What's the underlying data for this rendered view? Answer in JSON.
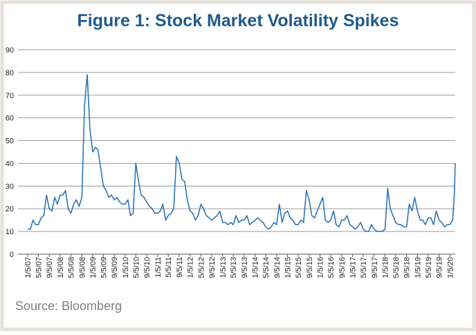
{
  "chart_data": {
    "type": "line",
    "title": "Figure 1: Stock Market Volatility Spikes",
    "source": "Source: Bloomberg",
    "color": "#2e75b6",
    "grid": true,
    "x": [
      "1/5/07",
      "2/5/07",
      "3/5/07",
      "4/5/07",
      "5/5/07",
      "6/5/07",
      "7/5/07",
      "8/5/07",
      "9/5/07",
      "10/5/07",
      "11/5/07",
      "12/5/07",
      "1/5/08",
      "2/5/08",
      "3/5/08",
      "4/5/08",
      "5/5/08",
      "6/5/08",
      "7/5/08",
      "8/5/08",
      "9/5/08",
      "10/5/08",
      "11/5/08",
      "12/5/08",
      "1/5/09",
      "2/5/09",
      "3/5/09",
      "4/5/09",
      "5/5/09",
      "6/5/09",
      "7/5/09",
      "8/5/09",
      "9/5/09",
      "10/5/09",
      "11/5/09",
      "12/5/09",
      "1/5/10",
      "2/5/10",
      "3/5/10",
      "4/5/10",
      "5/5/10",
      "6/5/10",
      "7/5/10",
      "8/5/10",
      "9/5/10",
      "10/5/10",
      "11/5/10",
      "12/5/10",
      "1/5/11",
      "2/5/11",
      "3/5/11",
      "4/5/11",
      "5/5/11",
      "6/5/11",
      "7/5/11",
      "8/5/11",
      "9/5/11",
      "10/5/11",
      "11/5/11",
      "12/5/11",
      "1/5/12",
      "2/5/12",
      "3/5/12",
      "4/5/12",
      "5/5/12",
      "6/5/12",
      "7/5/12",
      "8/5/12",
      "9/5/12",
      "10/5/12",
      "11/5/12",
      "12/5/12",
      "1/5/13",
      "2/5/13",
      "3/5/13",
      "4/5/13",
      "5/5/13",
      "6/5/13",
      "7/5/13",
      "8/5/13",
      "9/5/13",
      "10/5/13",
      "11/5/13",
      "12/5/13",
      "1/5/14",
      "2/5/14",
      "3/5/14",
      "4/5/14",
      "5/5/14",
      "6/5/14",
      "7/5/14",
      "8/5/14",
      "9/5/14",
      "10/5/14",
      "11/5/14",
      "12/5/14",
      "1/5/15",
      "2/5/15",
      "3/5/15",
      "4/5/15",
      "5/5/15",
      "6/5/15",
      "7/5/15",
      "8/5/15",
      "9/5/15",
      "10/5/15",
      "11/5/15",
      "12/5/15",
      "1/5/16",
      "2/5/16",
      "3/5/16",
      "4/5/16",
      "5/5/16",
      "6/5/16",
      "7/5/16",
      "8/5/16",
      "9/5/16",
      "10/5/16",
      "11/5/16",
      "12/5/16",
      "1/5/17",
      "2/5/17",
      "3/5/17",
      "4/5/17",
      "5/5/17",
      "6/5/17",
      "7/5/17",
      "8/5/17",
      "9/5/17",
      "10/5/17",
      "11/5/17",
      "12/5/17",
      "1/5/18",
      "2/5/18",
      "3/5/18",
      "4/5/18",
      "5/5/18",
      "6/5/18",
      "7/5/18",
      "8/5/18",
      "9/5/18",
      "10/5/18",
      "11/5/18",
      "12/5/18",
      "1/5/19",
      "2/5/19",
      "3/5/19",
      "4/5/19",
      "5/5/19",
      "6/5/19",
      "7/5/19",
      "8/5/19",
      "9/5/19",
      "10/5/19",
      "11/5/19",
      "12/5/19",
      "1/5/20",
      "2/5/20",
      "2/25/20",
      "3/5/20"
    ],
    "values": [
      11,
      11,
      15,
      13,
      13,
      16,
      17,
      26,
      20,
      19,
      25,
      22,
      26,
      26,
      28,
      20,
      18,
      22,
      24,
      21,
      25,
      65,
      79,
      55,
      45,
      47,
      46,
      38,
      30,
      28,
      25,
      26,
      24,
      25,
      23,
      22,
      22,
      24,
      17,
      18,
      40,
      32,
      26,
      25,
      23,
      21,
      20,
      18,
      18,
      19,
      22,
      15,
      17,
      18,
      20,
      43,
      40,
      33,
      32,
      24,
      19,
      18,
      15,
      17,
      22,
      20,
      17,
      16,
      15,
      16,
      17,
      19,
      14,
      14,
      13,
      14,
      13,
      17,
      14,
      15,
      15,
      17,
      13,
      14,
      15,
      16,
      15,
      14,
      12,
      11,
      12,
      14,
      13,
      22,
      14,
      18,
      19,
      16,
      15,
      13,
      13,
      15,
      14,
      28,
      24,
      17,
      16,
      19,
      22,
      25,
      15,
      14,
      15,
      19,
      13,
      12,
      15,
      15,
      17,
      13,
      12,
      11,
      12,
      14,
      11,
      10,
      10,
      13,
      11,
      10,
      10,
      10,
      11,
      29,
      20,
      17,
      14,
      13,
      13,
      12,
      12,
      22,
      19,
      25,
      19,
      15,
      15,
      13,
      16,
      16,
      13,
      19,
      15,
      14,
      12,
      13,
      13,
      15,
      27,
      40
    ],
    "xlim": [
      "1/5/07",
      "3/5/20"
    ],
    "xticks": [
      "1/5/07",
      "5/5/07",
      "9/5/07",
      "1/5/08",
      "5/5/08",
      "9/5/08",
      "1/5/09",
      "5/5/09",
      "9/5/09",
      "1/5/10",
      "5/5/10",
      "9/5/10",
      "1/5/11",
      "5/5/11",
      "9/5/11",
      "1/5/12",
      "5/5/12",
      "9/5/12",
      "1/5/13",
      "5/5/13",
      "9/5/13",
      "1/5/14",
      "5/5/14",
      "9/5/14",
      "1/5/15",
      "5/5/15",
      "9/5/15",
      "1/5/16",
      "5/5/16",
      "9/5/16",
      "1/5/17",
      "5/5/17",
      "9/5/17",
      "1/5/18",
      "5/5/18",
      "9/5/18",
      "1/5/19",
      "5/5/19",
      "9/5/19",
      "1/5/20"
    ],
    "ylim": [
      0,
      90
    ],
    "yticks": [
      0,
      10,
      20,
      30,
      40,
      50,
      60,
      70,
      80,
      90
    ]
  }
}
